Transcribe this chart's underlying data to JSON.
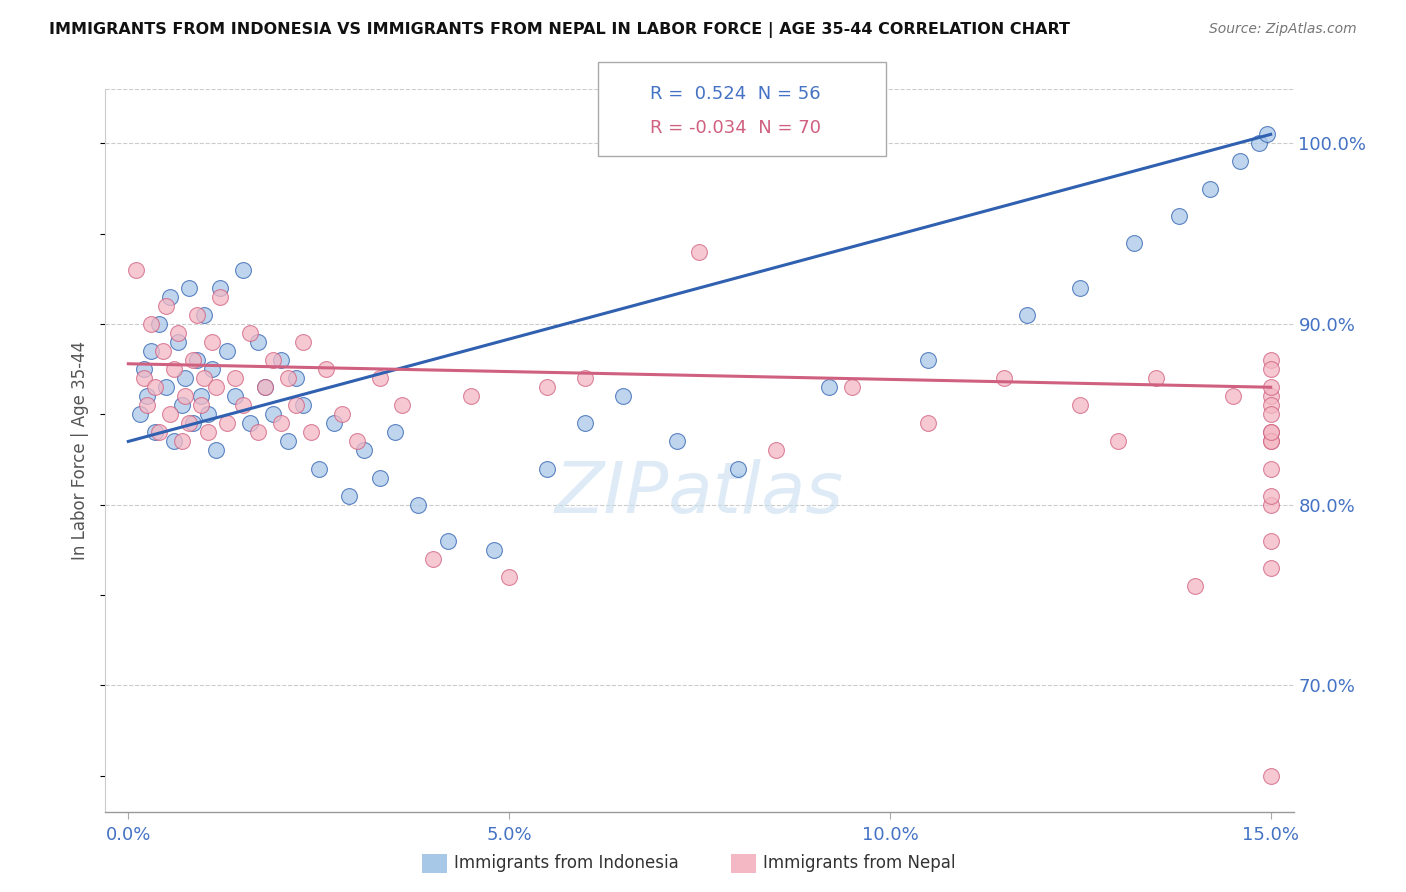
{
  "title": "IMMIGRANTS FROM INDONESIA VS IMMIGRANTS FROM NEPAL IN LABOR FORCE | AGE 35-44 CORRELATION CHART",
  "source": "Source: ZipAtlas.com",
  "ylabel": "In Labor Force | Age 35-44",
  "xlim": [
    -0.3,
    15.3
  ],
  "ylim": [
    63.0,
    103.0
  ],
  "xtick_labels": [
    "0.0%",
    "5.0%",
    "10.0%",
    "15.0%"
  ],
  "xtick_values": [
    0.0,
    5.0,
    10.0,
    15.0
  ],
  "ytick_labels": [
    "70.0%",
    "80.0%",
    "90.0%",
    "100.0%"
  ],
  "ytick_values": [
    70.0,
    80.0,
    90.0,
    100.0
  ],
  "legend_label1": "Immigrants from Indonesia",
  "legend_label2": "Immigrants from Nepal",
  "R1": 0.524,
  "N1": 56,
  "R2": -0.034,
  "N2": 70,
  "color_indonesia": "#a8c8e8",
  "color_nepal": "#f4b8c4",
  "color_line1": "#3060b0",
  "color_line2": "#d06080",
  "background_color": "#ffffff",
  "indo_line_x0": 0.0,
  "indo_line_y0": 83.5,
  "indo_line_x1": 15.0,
  "indo_line_y1": 100.5,
  "nepal_line_x0": 0.0,
  "nepal_line_y0": 87.8,
  "nepal_line_x1": 15.0,
  "nepal_line_y1": 86.5,
  "indonesia_x": [
    0.15,
    0.2,
    0.25,
    0.3,
    0.35,
    0.4,
    0.5,
    0.55,
    0.6,
    0.65,
    0.7,
    0.75,
    0.8,
    0.85,
    0.9,
    0.95,
    1.0,
    1.05,
    1.1,
    1.15,
    1.2,
    1.3,
    1.4,
    1.5,
    1.6,
    1.7,
    1.8,
    1.9,
    2.0,
    2.1,
    2.2,
    2.3,
    2.5,
    2.7,
    2.9,
    3.1,
    3.3,
    3.5,
    3.8,
    4.2,
    4.8,
    5.5,
    6.0,
    6.5,
    7.2,
    8.0,
    9.2,
    10.5,
    11.8,
    12.5,
    13.2,
    13.8,
    14.2,
    14.6,
    14.85,
    14.95
  ],
  "indonesia_y": [
    85.0,
    87.5,
    86.0,
    88.5,
    84.0,
    90.0,
    86.5,
    91.5,
    83.5,
    89.0,
    85.5,
    87.0,
    92.0,
    84.5,
    88.0,
    86.0,
    90.5,
    85.0,
    87.5,
    83.0,
    92.0,
    88.5,
    86.0,
    93.0,
    84.5,
    89.0,
    86.5,
    85.0,
    88.0,
    83.5,
    87.0,
    85.5,
    82.0,
    84.5,
    80.5,
    83.0,
    81.5,
    84.0,
    80.0,
    78.0,
    77.5,
    82.0,
    84.5,
    86.0,
    83.5,
    82.0,
    86.5,
    88.0,
    90.5,
    92.0,
    94.5,
    96.0,
    97.5,
    99.0,
    100.0,
    100.5
  ],
  "nepal_x": [
    0.1,
    0.2,
    0.25,
    0.3,
    0.35,
    0.4,
    0.45,
    0.5,
    0.55,
    0.6,
    0.65,
    0.7,
    0.75,
    0.8,
    0.85,
    0.9,
    0.95,
    1.0,
    1.05,
    1.1,
    1.15,
    1.2,
    1.3,
    1.4,
    1.5,
    1.6,
    1.7,
    1.8,
    1.9,
    2.0,
    2.1,
    2.2,
    2.3,
    2.4,
    2.6,
    2.8,
    3.0,
    3.3,
    3.6,
    4.0,
    4.5,
    5.0,
    5.5,
    6.0,
    7.5,
    8.5,
    9.5,
    10.5,
    11.5,
    12.5,
    13.0,
    13.5,
    14.0,
    14.5,
    15.0,
    15.0,
    15.0,
    15.0,
    15.0,
    15.0,
    15.0,
    15.0,
    15.0,
    15.0,
    15.0,
    15.0,
    15.0,
    15.0,
    15.0,
    15.0
  ],
  "nepal_y": [
    93.0,
    87.0,
    85.5,
    90.0,
    86.5,
    84.0,
    88.5,
    91.0,
    85.0,
    87.5,
    89.5,
    83.5,
    86.0,
    84.5,
    88.0,
    90.5,
    85.5,
    87.0,
    84.0,
    89.0,
    86.5,
    91.5,
    84.5,
    87.0,
    85.5,
    89.5,
    84.0,
    86.5,
    88.0,
    84.5,
    87.0,
    85.5,
    89.0,
    84.0,
    87.5,
    85.0,
    83.5,
    87.0,
    85.5,
    77.0,
    86.0,
    76.0,
    86.5,
    87.0,
    94.0,
    83.0,
    86.5,
    84.5,
    87.0,
    85.5,
    83.5,
    87.0,
    75.5,
    86.0,
    76.5,
    78.0,
    80.0,
    82.0,
    84.0,
    86.0,
    88.0,
    83.5,
    85.5,
    80.5,
    65.0,
    83.5,
    86.5,
    84.0,
    87.5,
    85.0
  ]
}
